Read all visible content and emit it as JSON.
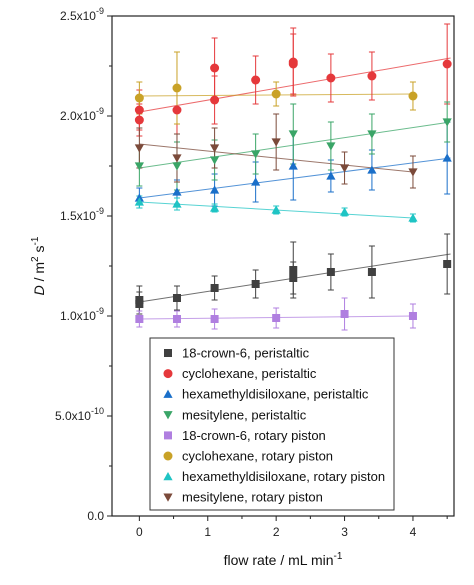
{
  "chart_data": {
    "type": "scatter",
    "xlabel": "flow rate / mL min",
    "xlabel_sup": "-1",
    "ylabel_italic": "D",
    "ylabel_rest": " / m",
    "ylabel_sup1": "2",
    "ylabel_mid": " s",
    "ylabel_sup2": "-1",
    "xlim": [
      -0.4,
      4.6
    ],
    "ylim": [
      0,
      2.5e-09
    ],
    "x_ticks": [
      0,
      1,
      2,
      3,
      4
    ],
    "x_tick_labels": [
      "0",
      "1",
      "2",
      "3",
      "4"
    ],
    "y_ticks": [
      0,
      5e-10,
      1e-09,
      1.5e-09,
      2e-09,
      2.5e-09
    ],
    "y_tick_labels": [
      {
        "base": "0.0",
        "exp": ""
      },
      {
        "base": "5.0x10",
        "exp": "-10"
      },
      {
        "base": "1.0x10",
        "exp": "-9"
      },
      {
        "base": "1.5x10",
        "exp": "-9"
      },
      {
        "base": "2.0x10",
        "exp": "-9"
      },
      {
        "base": "2.5x10",
        "exp": "-9"
      }
    ],
    "legend_position": "bottom-right",
    "series": [
      {
        "name": "18-crown-6, peristaltic",
        "color": "#404040",
        "marker": "square",
        "x": [
          0,
          0,
          0.55,
          1.1,
          1.7,
          2.25,
          2.25,
          2.8,
          3.4,
          4.5
        ],
        "y": [
          1.06e-09,
          1.08e-09,
          1.09e-09,
          1.14e-09,
          1.16e-09,
          1.23e-09,
          1.19e-09,
          1.22e-09,
          1.22e-09,
          1.26e-09
        ],
        "err": [
          6e-11,
          7e-11,
          6e-11,
          6e-11,
          7e-11,
          1.4e-10,
          8e-11,
          9e-11,
          1.3e-10,
          1.5e-10
        ],
        "fit": [
          1.07e-09,
          1.31e-09
        ]
      },
      {
        "name": "cyclohexane, peristaltic",
        "color": "#e5383b",
        "marker": "circle",
        "x": [
          0,
          0,
          0.55,
          1.1,
          1.1,
          1.7,
          2.25,
          2.25,
          2.8,
          3.4,
          4.5
        ],
        "y": [
          1.98e-09,
          2.03e-09,
          2.03e-09,
          2.08e-09,
          2.24e-09,
          2.18e-09,
          2.26e-09,
          2.27e-09,
          2.19e-09,
          2.2e-09,
          2.26e-09
        ],
        "err": [
          8e-11,
          1e-10,
          1.2e-10,
          1.2e-10,
          1.5e-10,
          1.2e-10,
          1.5e-10,
          1.7e-10,
          1.2e-10,
          1.2e-10,
          2e-10
        ],
        "fit": [
          2.02e-09,
          2.29e-09
        ]
      },
      {
        "name": "hexamethyldisiloxane, peristaltic",
        "color": "#1a6fc9",
        "marker": "triangle-up",
        "x": [
          0,
          0.55,
          1.1,
          1.7,
          2.25,
          2.8,
          3.4,
          4.5
        ],
        "y": [
          1.59e-09,
          1.62e-09,
          1.63e-09,
          1.67e-09,
          1.75e-09,
          1.7e-09,
          1.73e-09,
          1.79e-09
        ],
        "err": [
          5e-11,
          6e-11,
          8e-11,
          1e-10,
          1.7e-10,
          8e-11,
          1e-10,
          1.8e-10
        ],
        "fit": [
          1.59e-09,
          1.79e-09
        ]
      },
      {
        "name": "mesitylene, peristaltic",
        "color": "#3aa567",
        "marker": "triangle-down",
        "x": [
          0,
          0.55,
          1.1,
          1.7,
          2.25,
          2.8,
          3.4,
          4.5
        ],
        "y": [
          1.75e-09,
          1.75e-09,
          1.78e-09,
          1.81e-09,
          1.91e-09,
          1.85e-09,
          1.91e-09,
          1.97e-09
        ],
        "err": [
          1e-10,
          1.2e-10,
          1e-10,
          1e-10,
          1.5e-10,
          1.2e-10,
          1e-10,
          1e-10
        ],
        "fit": [
          1.74e-09,
          1.97e-09
        ]
      },
      {
        "name": "18-crown-6, rotary piston",
        "color": "#b07fe0",
        "marker": "square",
        "x": [
          0,
          0.55,
          1.1,
          2.0,
          3.0,
          4.0
        ],
        "y": [
          9.85e-10,
          9.85e-10,
          9.85e-10,
          9.9e-10,
          1.01e-09,
          1e-09
        ],
        "err": [
          4e-11,
          4e-11,
          5e-11,
          5e-11,
          8e-11,
          6e-11
        ],
        "fit": [
          9.85e-10,
          1e-09
        ]
      },
      {
        "name": "cyclohexane, rotary piston",
        "color": "#c9a227",
        "marker": "circle",
        "x": [
          0,
          0.55,
          2.0,
          4.0
        ],
        "y": [
          2.09e-09,
          2.14e-09,
          2.11e-09,
          2.1e-09
        ],
        "err": [
          8e-11,
          1.8e-10,
          6e-11,
          7e-11
        ],
        "fit": [
          2.1e-09,
          2.11e-09
        ]
      },
      {
        "name": "hexamethyldisiloxane, rotary piston",
        "color": "#1fc4c4",
        "marker": "triangle-up",
        "x": [
          0,
          0.55,
          1.1,
          2.0,
          3.0,
          4.0
        ],
        "y": [
          1.57e-09,
          1.56e-09,
          1.54e-09,
          1.53e-09,
          1.52e-09,
          1.49e-09
        ],
        "err": [
          3e-11,
          3e-11,
          2e-11,
          2e-11,
          2e-11,
          2e-11
        ],
        "fit": [
          1.57e-09,
          1.49e-09
        ]
      },
      {
        "name": "mesitylene, rotary piston",
        "color": "#7b4a3a",
        "marker": "triangle-down",
        "x": [
          0,
          0.55,
          1.1,
          2.0,
          3.0,
          4.0
        ],
        "y": [
          1.84e-09,
          1.79e-09,
          1.84e-09,
          1.87e-09,
          1.74e-09,
          1.72e-09
        ],
        "err": [
          1e-10,
          1.2e-10,
          1e-10,
          1.4e-10,
          8e-11,
          8e-11
        ],
        "fit": [
          1.86e-09,
          1.72e-09
        ]
      }
    ]
  }
}
